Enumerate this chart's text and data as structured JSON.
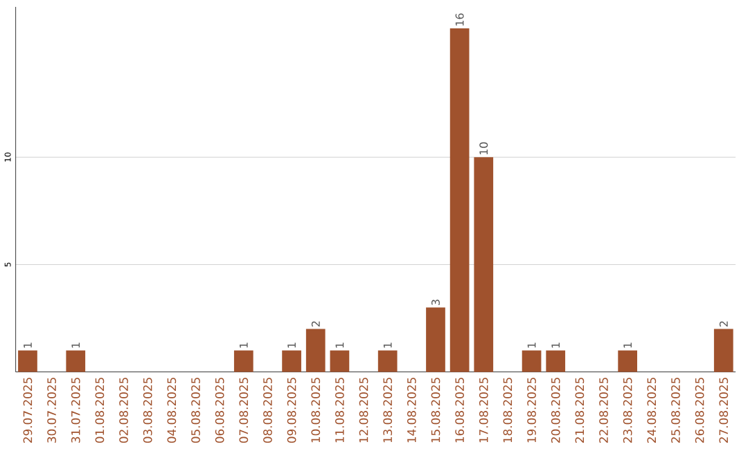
{
  "chart_data": {
    "type": "bar",
    "categories": [
      "29.07.2025",
      "30.07.2025",
      "31.07.2025",
      "01.08.2025",
      "02.08.2025",
      "03.08.2025",
      "04.08.2025",
      "05.08.2025",
      "06.08.2025",
      "07.08.2025",
      "08.08.2025",
      "09.08.2025",
      "10.08.2025",
      "11.08.2025",
      "12.08.2025",
      "13.08.2025",
      "14.08.2025",
      "15.08.2025",
      "16.08.2025",
      "17.08.2025",
      "18.08.2025",
      "19.08.2025",
      "20.08.2025",
      "21.08.2025",
      "22.08.2025",
      "23.08.2025",
      "24.08.2025",
      "25.08.2025",
      "26.08.2025",
      "27.08.2025"
    ],
    "values": [
      1,
      0,
      1,
      0,
      0,
      0,
      0,
      0,
      0,
      1,
      0,
      1,
      2,
      1,
      0,
      1,
      0,
      3,
      16,
      10,
      0,
      1,
      1,
      0,
      0,
      1,
      0,
      0,
      0,
      2
    ],
    "value_labels": [
      "1",
      null,
      "1",
      null,
      null,
      null,
      null,
      null,
      null,
      "1",
      null,
      "1",
      "2",
      "1",
      null,
      "1",
      null,
      "3",
      "16",
      "10",
      null,
      "1",
      "1",
      null,
      null,
      "1",
      null,
      null,
      null,
      "2"
    ],
    "color": "#a0522d",
    "ylim": [
      0,
      17
    ],
    "yticks": [
      5,
      10
    ],
    "grid": "y"
  }
}
